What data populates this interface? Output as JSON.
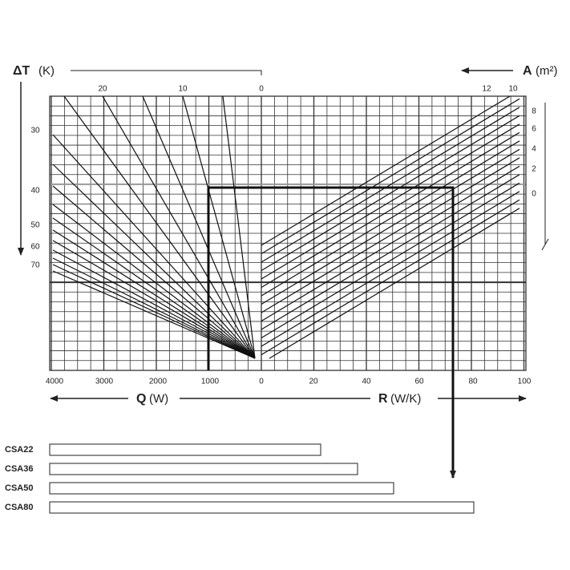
{
  "delta_t_axis": {
    "label": "ΔT",
    "unit": "(K)",
    "top_ticks": [
      "20",
      "10",
      "0"
    ],
    "side_ticks": [
      "30",
      "40",
      "50",
      "60",
      "70"
    ]
  },
  "a_axis": {
    "label": "A",
    "unit": "(m²)",
    "top_ticks": [
      "12",
      "10"
    ],
    "side_ticks": [
      "8",
      "6",
      "4",
      "2",
      "0"
    ]
  },
  "q_axis": {
    "label": "Q",
    "unit": "(W)",
    "ticks": [
      "4000",
      "3000",
      "2000",
      "1000",
      "0"
    ]
  },
  "r_axis": {
    "label": "R",
    "unit": "(W/K)",
    "ticks": [
      "0",
      "20",
      "40",
      "60",
      "80",
      "100"
    ]
  },
  "products": [
    {
      "label": "CSA22"
    },
    {
      "label": "CSA36"
    },
    {
      "label": "CSA50"
    },
    {
      "label": "CSA80"
    }
  ]
}
